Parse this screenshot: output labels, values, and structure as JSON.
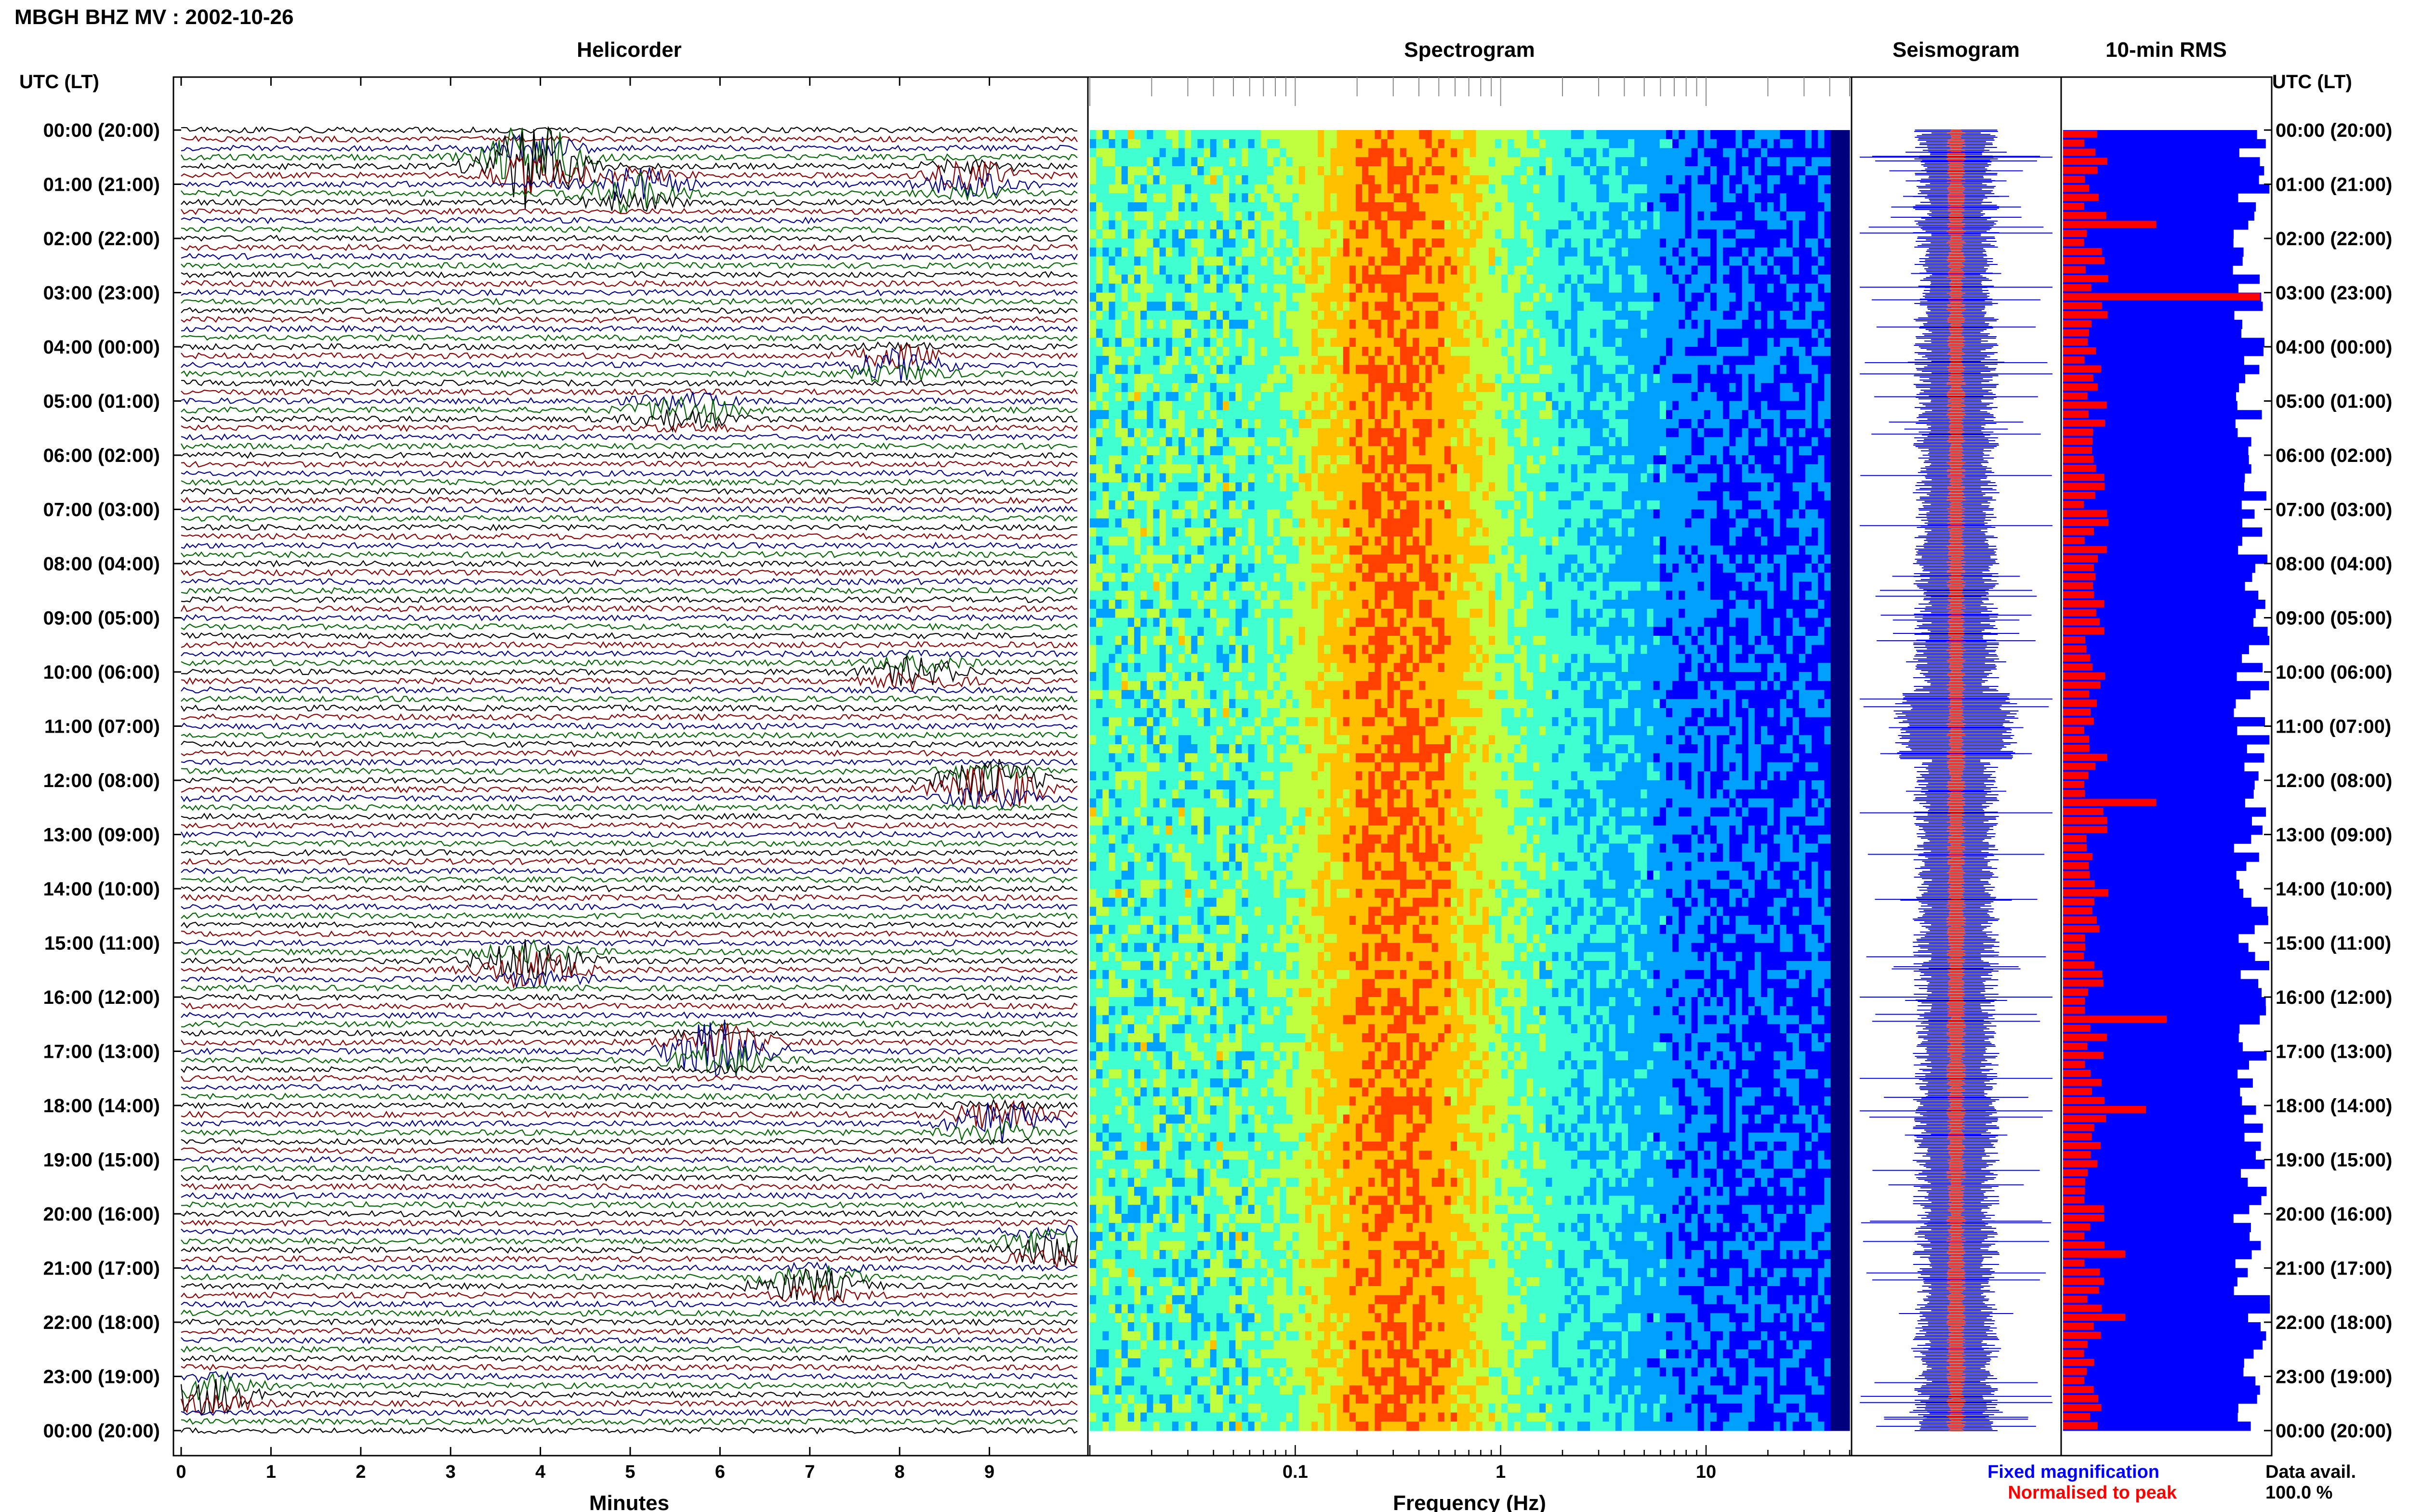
{
  "header": {
    "title": "MBGH BHZ MV : 2002-10-26",
    "utc_lt_label": "UTC (LT)"
  },
  "panels": {
    "helicorder": "Helicorder",
    "spectrogram": "Spectrogram",
    "seismogram": "Seismogram",
    "rms": "10-min RMS"
  },
  "time_labels": [
    "00:00 (20:00)",
    "01:00 (21:00)",
    "02:00 (22:00)",
    "03:00 (23:00)",
    "04:00 (00:00)",
    "05:00 (01:00)",
    "06:00 (02:00)",
    "07:00 (03:00)",
    "08:00 (04:00)",
    "09:00 (05:00)",
    "10:00 (06:00)",
    "11:00 (07:00)",
    "12:00 (08:00)",
    "13:00 (09:00)",
    "14:00 (10:00)",
    "15:00 (11:00)",
    "16:00 (12:00)",
    "17:00 (13:00)",
    "18:00 (14:00)",
    "19:00 (15:00)",
    "20:00 (16:00)",
    "21:00 (17:00)",
    "22:00 (18:00)",
    "23:00 (19:00)",
    "00:00 (20:00)"
  ],
  "legend": {
    "fixed": "Fixed magnification",
    "normalised": "Normalised to peak",
    "data_avail_label": "Data avail.",
    "data_avail_value": "100.0 %"
  },
  "colors": {
    "trace_black": "#000000",
    "trace_red": "#8b0000",
    "trace_blue": "#00008b",
    "trace_green": "#006400",
    "fixed": "#0000ff",
    "normalised": "#ff0000"
  },
  "chart_data": [
    {
      "type": "line",
      "title": "Helicorder",
      "xlabel": "Minutes",
      "xlim": [
        0,
        10
      ],
      "x_ticks": [
        "0",
        "1",
        "2",
        "3",
        "4",
        "5",
        "6",
        "7",
        "8",
        "9"
      ],
      "lines_per_hour": 6,
      "line_colors": [
        "black",
        "red",
        "blue",
        "green"
      ],
      "events": [
        {
          "hour": 0.6,
          "minute": 3.9,
          "amplitude": 1.0,
          "color": "blue"
        },
        {
          "hour": 1.1,
          "minute": 5.0,
          "amplitude": 0.45,
          "color": "green"
        },
        {
          "hour": 0.9,
          "minute": 8.8,
          "amplitude": 0.3,
          "color": "red"
        },
        {
          "hour": 4.3,
          "minute": 8.0,
          "amplitude": 0.3,
          "color": "green"
        },
        {
          "hour": 5.2,
          "minute": 5.6,
          "amplitude": 0.3,
          "color": "red"
        },
        {
          "hour": 10.0,
          "minute": 8.2,
          "amplitude": 0.25,
          "color": "black"
        },
        {
          "hour": 12.1,
          "minute": 9.0,
          "amplitude": 0.55,
          "color": "green"
        },
        {
          "hour": 15.4,
          "minute": 3.9,
          "amplitude": 0.5,
          "color": "blue"
        },
        {
          "hour": 17.0,
          "minute": 6.0,
          "amplitude": 0.6,
          "color": "black"
        },
        {
          "hour": 18.3,
          "minute": 9.1,
          "amplitude": 0.4,
          "color": "red"
        },
        {
          "hour": 20.6,
          "minute": 9.7,
          "amplitude": 0.35,
          "color": "blue"
        },
        {
          "hour": 21.3,
          "minute": 7.0,
          "amplitude": 0.35,
          "color": "green"
        },
        {
          "hour": 23.3,
          "minute": 0.3,
          "amplitude": 0.4,
          "color": "red"
        }
      ]
    },
    {
      "type": "heatmap",
      "title": "Spectrogram",
      "xlabel": "Frequency (Hz)",
      "x_scale": "log",
      "xlim": [
        0.01,
        50
      ],
      "x_ticks": [
        "0.1",
        "1",
        "10"
      ],
      "y": "time (24 h)",
      "peak_band_hz": [
        0.2,
        0.5
      ],
      "colormap": [
        "#00007f",
        "#0000ff",
        "#00a0ff",
        "#40ffd0",
        "#c0ff40",
        "#ffc000",
        "#ff4000",
        "#c00000"
      ]
    },
    {
      "type": "line",
      "title": "Seismogram",
      "series": [
        {
          "name": "Fixed magnification",
          "color": "#0000ff"
        },
        {
          "name": "Normalised to peak",
          "color": "#ff0000"
        }
      ],
      "spikes_hour": [
        0.5,
        1.9,
        2.9,
        4.5,
        7.3,
        10.5,
        12.6,
        16.0,
        17.5,
        18.1
      ]
    },
    {
      "type": "bar",
      "title": "10-min RMS",
      "orientation": "horizontal",
      "bins": 144,
      "series": [
        {
          "name": "Fixed magnification",
          "color": "#0000ff",
          "level_range": [
            0.82,
            1.0
          ]
        },
        {
          "name": "Normalised to peak",
          "color": "#ff0000",
          "peaks": [
            {
              "bin": 10,
              "value": 0.45
            },
            {
              "bin": 18,
              "value": 0.95
            },
            {
              "bin": 74,
              "value": 0.45
            },
            {
              "bin": 98,
              "value": 0.5
            },
            {
              "bin": 108,
              "value": 0.4
            },
            {
              "bin": 124,
              "value": 0.3
            },
            {
              "bin": 131,
              "value": 0.3
            }
          ]
        }
      ]
    }
  ]
}
